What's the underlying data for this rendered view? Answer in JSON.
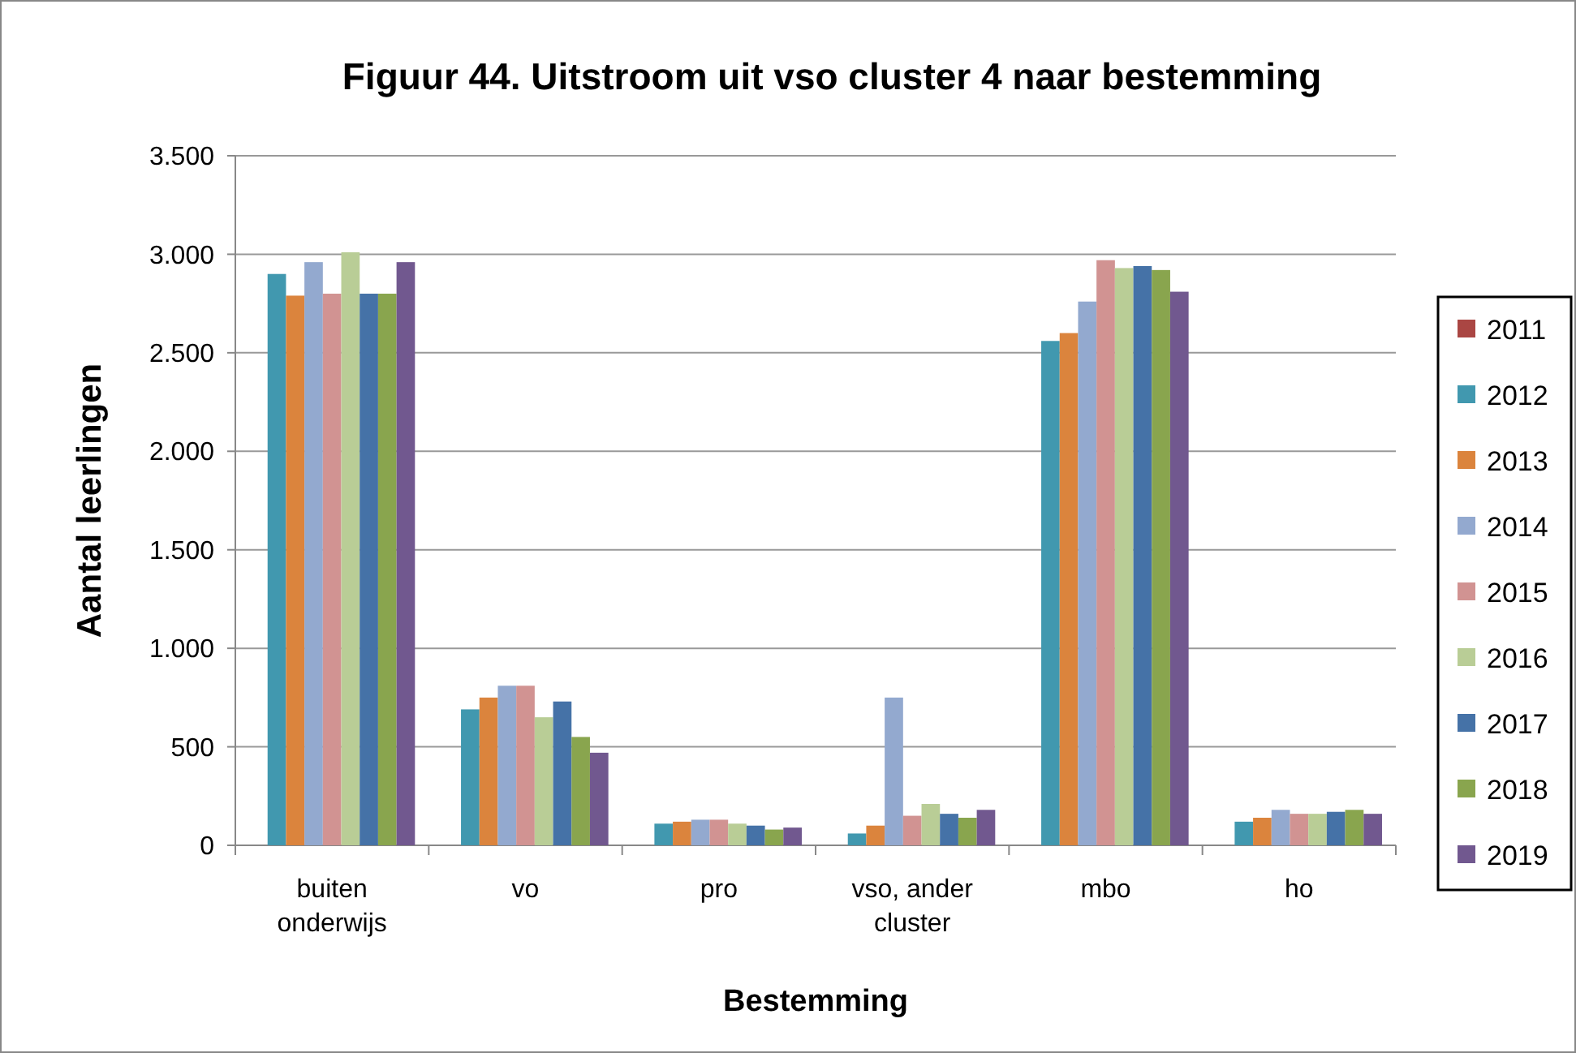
{
  "chart_data": {
    "type": "bar",
    "title": "Figuur 44. Uitstroom uit vso cluster 4 naar bestemming",
    "xlabel": "Bestemming",
    "ylabel": "Aantal leerlingen",
    "categories": [
      "buiten onderwijs",
      "vo",
      "pro",
      "vso, ander cluster",
      "mbo",
      "ho"
    ],
    "series": [
      {
        "name": "2011",
        "color": "#aa4643",
        "values": [
          null,
          null,
          null,
          null,
          null,
          null
        ]
      },
      {
        "name": "2012",
        "color": "#4198af",
        "values": [
          2900,
          690,
          110,
          60,
          2560,
          120
        ]
      },
      {
        "name": "2013",
        "color": "#db843d",
        "values": [
          2790,
          750,
          120,
          100,
          2600,
          140
        ]
      },
      {
        "name": "2014",
        "color": "#93a9cf",
        "values": [
          2960,
          810,
          130,
          750,
          2760,
          180
        ]
      },
      {
        "name": "2015",
        "color": "#d19392",
        "values": [
          2800,
          810,
          130,
          150,
          2970,
          160
        ]
      },
      {
        "name": "2016",
        "color": "#b9cd96",
        "values": [
          3010,
          650,
          110,
          210,
          2930,
          160
        ]
      },
      {
        "name": "2017",
        "color": "#4572a7",
        "values": [
          2800,
          730,
          100,
          160,
          2940,
          170
        ]
      },
      {
        "name": "2018",
        "color": "#89a54e",
        "values": [
          2800,
          550,
          80,
          140,
          2920,
          180
        ]
      },
      {
        "name": "2019",
        "color": "#71588f",
        "values": [
          2960,
          470,
          90,
          180,
          2810,
          160
        ]
      }
    ],
    "ylim": [
      0,
      3500
    ],
    "yticks": [
      0,
      500,
      {
        "value": 1000,
        "label": "1.000"
      },
      {
        "value": 1500,
        "label": "1.500"
      },
      {
        "value": 2000,
        "label": "2.000"
      },
      {
        "value": 2500,
        "label": "2.500"
      },
      {
        "value": 3000,
        "label": "3.000"
      },
      {
        "value": 3500,
        "label": "3.500"
      }
    ],
    "grid": "y",
    "legend": "right"
  }
}
